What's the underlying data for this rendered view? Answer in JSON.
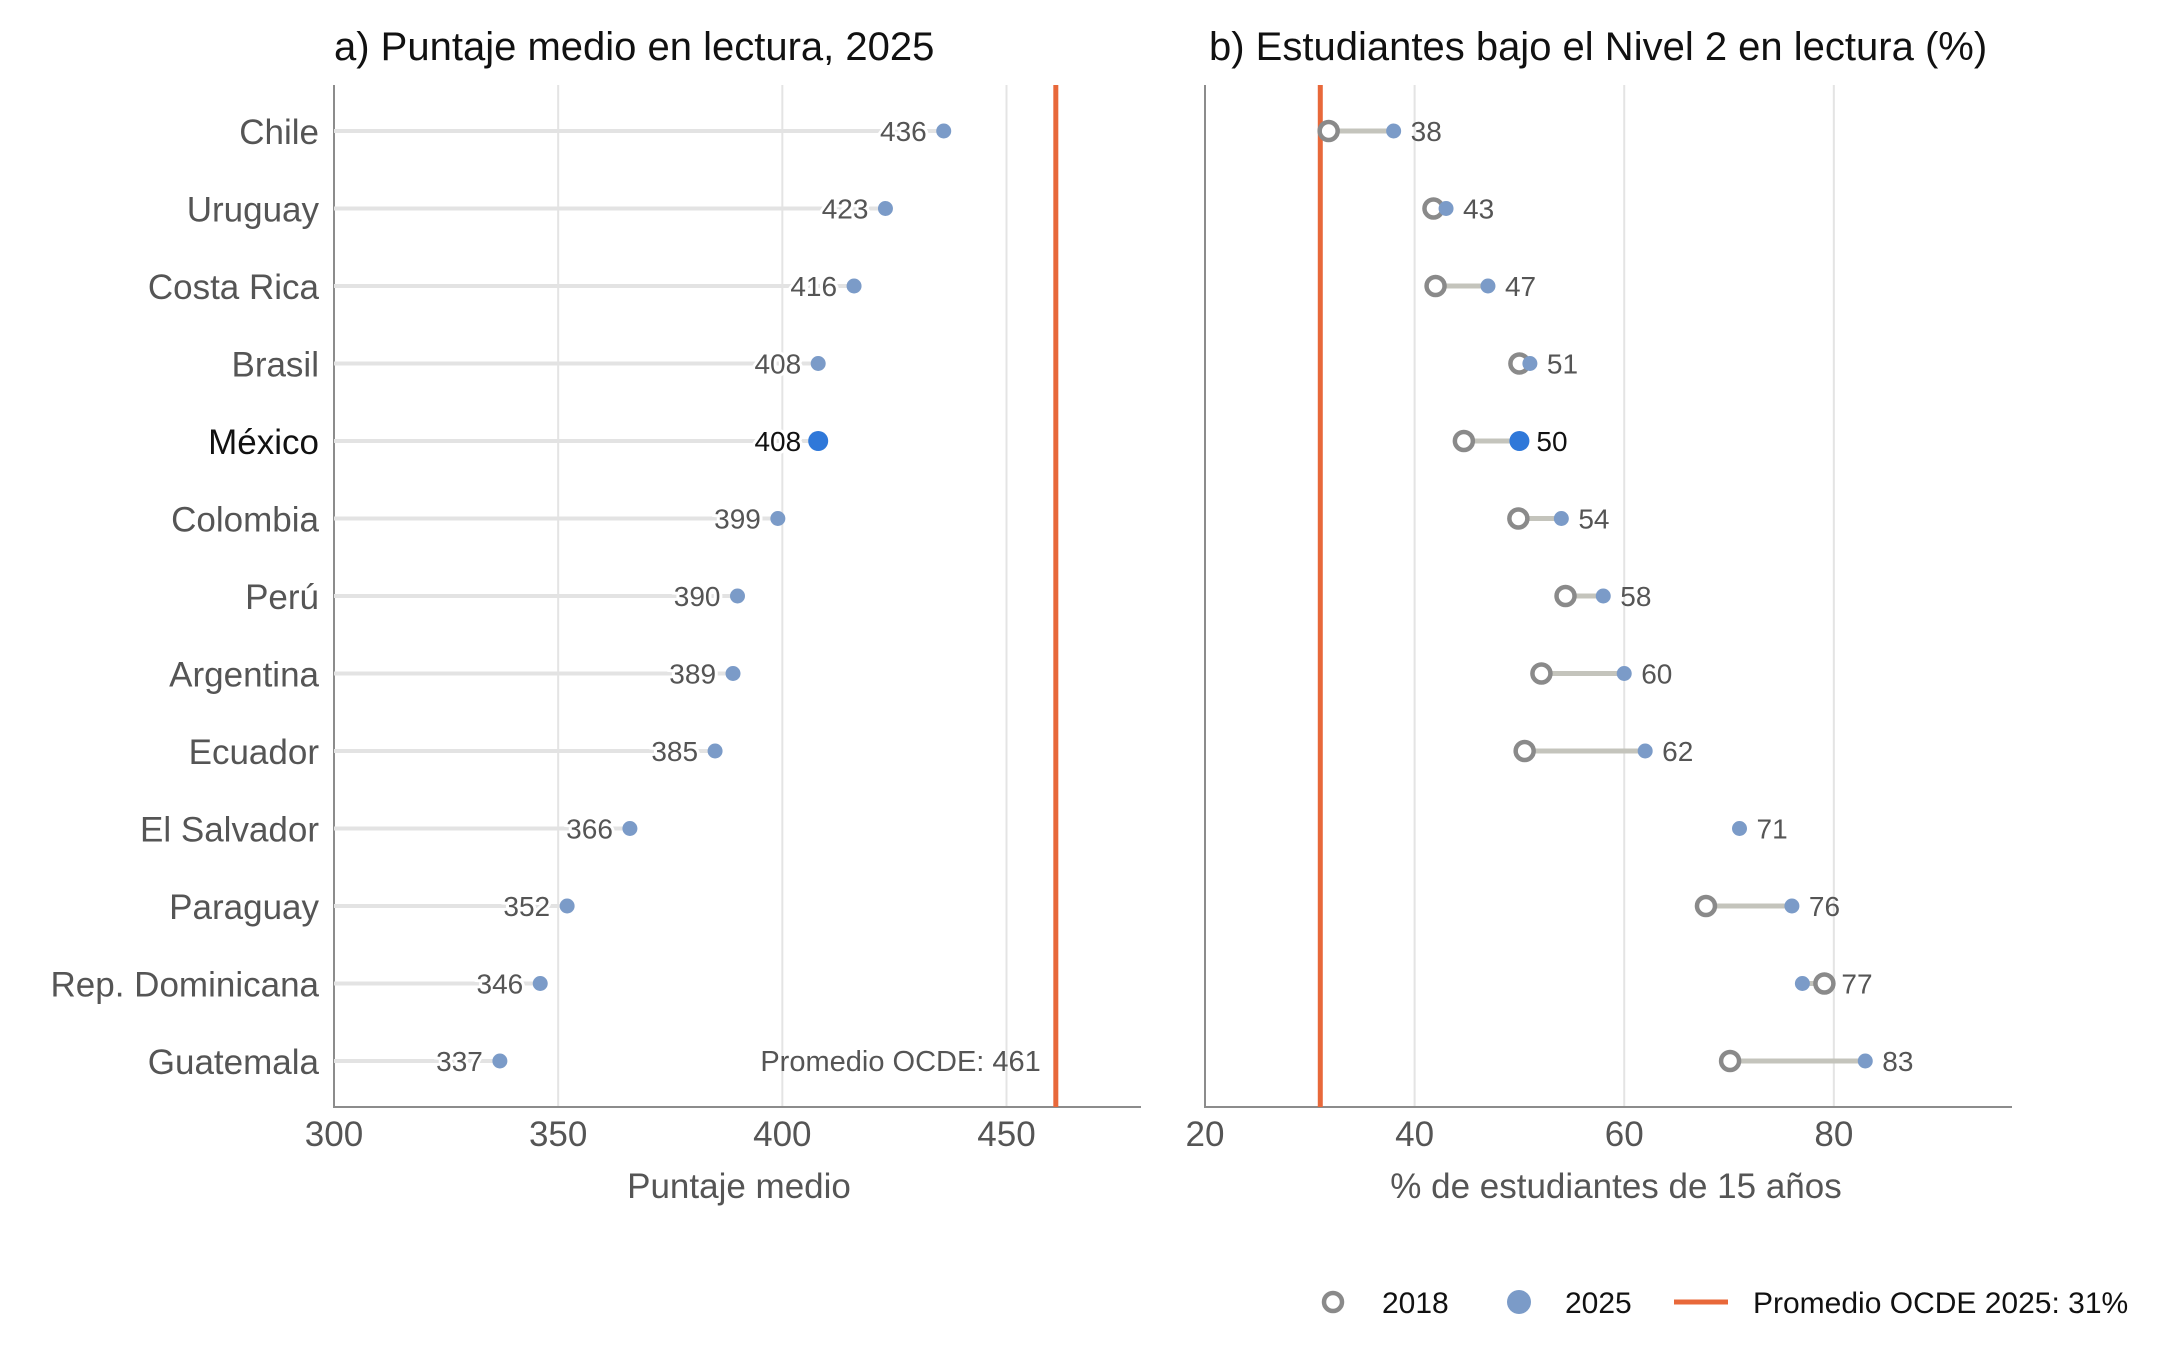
{
  "colors": {
    "dot": "#7b9bc8",
    "highlight": "#2f78d9",
    "ring_2018": "#8a8a8a",
    "connector": "#c4c4bc",
    "stem": "#e3e3e3",
    "reference": "#e8683a",
    "grid": "#e4e4e4",
    "axis": "#8c8c8c"
  },
  "chart_data": [
    {
      "type": "lollipop",
      "title": "a) Puntaje medio en lectura, 2025",
      "xlabel": "Puntaje medio",
      "xlim": [
        300,
        480
      ],
      "xticks": [
        "300",
        "350",
        "400",
        "450"
      ],
      "grid": true,
      "categories": [
        "Chile",
        "Uruguay",
        "Costa Rica",
        "Brasil",
        "México",
        "Colombia",
        "Perú",
        "Argentina",
        "Ecuador",
        "El Salvador",
        "Paraguay",
        "Rep. Dominicana",
        "Guatemala"
      ],
      "highlight": "México",
      "series": [
        {
          "name": "2025",
          "values": [
            436,
            423,
            416,
            408,
            408,
            399,
            390,
            389,
            385,
            366,
            352,
            346,
            337
          ]
        }
      ],
      "value_labels": [
        "436",
        "423",
        "416",
        "408",
        "408",
        "399",
        "390",
        "389",
        "385",
        "366",
        "352",
        "346",
        "337"
      ],
      "reference_line": {
        "value": 461,
        "label": "Promedio OCDE: 461"
      }
    },
    {
      "type": "dumbbell",
      "title": "b) Estudiantes bajo el Nivel 2 en lectura (%)",
      "xlabel": "% de estudiantes de 15 años",
      "xlim": [
        20,
        97
      ],
      "xticks": [
        "20",
        "40",
        "60",
        "80"
      ],
      "grid": true,
      "categories": [
        "Chile",
        "Uruguay",
        "Costa Rica",
        "Brasil",
        "México",
        "Colombia",
        "Perú",
        "Argentina",
        "Ecuador",
        "El Salvador",
        "Paraguay",
        "Rep. Dominicana",
        "Guatemala"
      ],
      "highlight": "México",
      "series": [
        {
          "name": "2018",
          "values": [
            31.8,
            41.8,
            42.0,
            50.0,
            44.7,
            49.9,
            54.4,
            52.1,
            50.5,
            null,
            67.8,
            79.1,
            70.1
          ]
        },
        {
          "name": "2025",
          "values": [
            38,
            43,
            47,
            51,
            50,
            54,
            58,
            60,
            62,
            71,
            76,
            77,
            83
          ]
        }
      ],
      "value_labels": [
        "38",
        "43",
        "47",
        "51",
        "50",
        "54",
        "58",
        "60",
        "62",
        "71",
        "76",
        "77",
        "83"
      ],
      "reference_line": {
        "value": 31
      }
    }
  ],
  "legend": {
    "placement": "bottom-right",
    "items": [
      {
        "label": "2018",
        "symbol": "open-circle"
      },
      {
        "label": "2025",
        "symbol": "filled-circle"
      },
      {
        "label": "Promedio OCDE 2025: 31%",
        "symbol": "line"
      }
    ]
  }
}
